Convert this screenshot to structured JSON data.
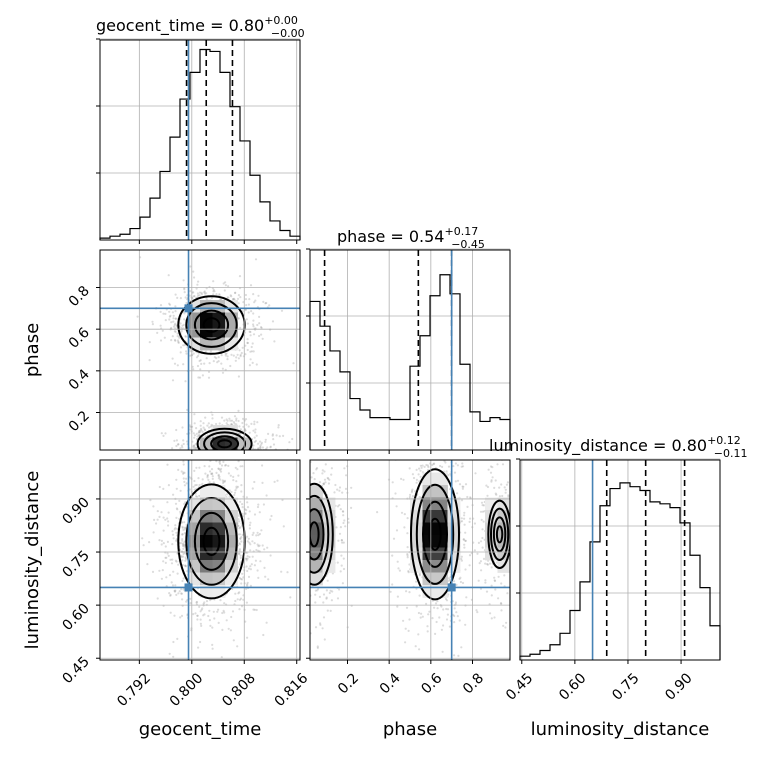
{
  "chart_data": {
    "type": "corner",
    "parameters": [
      {
        "key": "geocent_time",
        "label": "geocent_time",
        "title_prefix": "geocent_time = 0.80",
        "title_sup": "+0.00",
        "title_sub": "−0.00",
        "range": [
          0.786,
          0.8165
        ],
        "ticks": [
          0.792,
          0.8,
          0.808,
          0.816
        ],
        "tick_labels": [
          "0.792",
          "0.800",
          "0.808",
          "0.816"
        ],
        "truth": 0.7995,
        "quantiles": [
          0.7992,
          0.8022,
          0.8062
        ],
        "hist_counts": [
          1,
          2,
          3,
          6,
          12,
          22,
          36,
          54,
          74,
          88,
          100,
          99,
          88,
          70,
          52,
          34,
          20,
          10,
          5,
          2
        ],
        "hist_ylim": [
          0,
          105
        ]
      },
      {
        "key": "phase",
        "label": "phase",
        "title_prefix": "phase = 0.54",
        "title_sup": "+0.17",
        "title_sub": "−0.45",
        "range": [
          0.02,
          0.98
        ],
        "ticks": [
          0.2,
          0.4,
          0.6,
          0.8
        ],
        "tick_labels": [
          "0.2",
          "0.4",
          "0.6",
          "0.8"
        ],
        "truth": 0.7,
        "quantiles": [
          0.09,
          0.54,
          0.7
        ],
        "hist_counts": [
          78,
          65,
          52,
          41,
          27,
          21,
          17,
          17,
          16,
          16,
          44,
          60,
          81,
          92,
          82,
          45,
          20,
          15,
          17,
          16
        ],
        "hist_ylim": [
          0,
          105
        ]
      },
      {
        "key": "luminosity_distance",
        "label": "luminosity_distance",
        "title_prefix": "luminosity_distance = 0.80",
        "title_sup": "+0.12",
        "title_sub": "−0.11",
        "range": [
          0.445,
          1.01
        ],
        "ticks": [
          0.45,
          0.6,
          0.75,
          0.9
        ],
        "tick_labels": [
          "0.45",
          "0.60",
          "0.75",
          "0.90"
        ],
        "truth": 0.65,
        "quantiles": [
          0.69,
          0.8,
          0.91
        ],
        "hist_counts": [
          2,
          3,
          5,
          8,
          14,
          26,
          41,
          62,
          81,
          90,
          93,
          91,
          89,
          83,
          82,
          80,
          72,
          55,
          38,
          18
        ],
        "hist_ylim": [
          0,
          105
        ]
      }
    ],
    "truth_color": "#4682b4",
    "grid": true,
    "density_2d": {
      "phase_vs_geocent_time": {
        "modes": [
          {
            "x": 0.803,
            "y": 0.62,
            "sx": 0.0022,
            "sy": 0.06,
            "w": 1.0
          },
          {
            "x": 0.805,
            "y": 0.05,
            "sx": 0.002,
            "sy": 0.035,
            "w": 0.8
          }
        ]
      },
      "luminosity_distance_vs_geocent_time": {
        "modes": [
          {
            "x": 0.803,
            "y": 0.78,
            "sx": 0.0022,
            "sy": 0.07,
            "w": 1.0
          }
        ]
      },
      "luminosity_distance_vs_phase": {
        "modes": [
          {
            "x": 0.62,
            "y": 0.8,
            "sx": 0.05,
            "sy": 0.08,
            "w": 1.0
          },
          {
            "x": 0.04,
            "y": 0.8,
            "sx": 0.05,
            "sy": 0.08,
            "w": 0.6
          },
          {
            "x": 0.93,
            "y": 0.8,
            "sx": 0.04,
            "sy": 0.07,
            "w": 0.35
          }
        ]
      }
    }
  }
}
